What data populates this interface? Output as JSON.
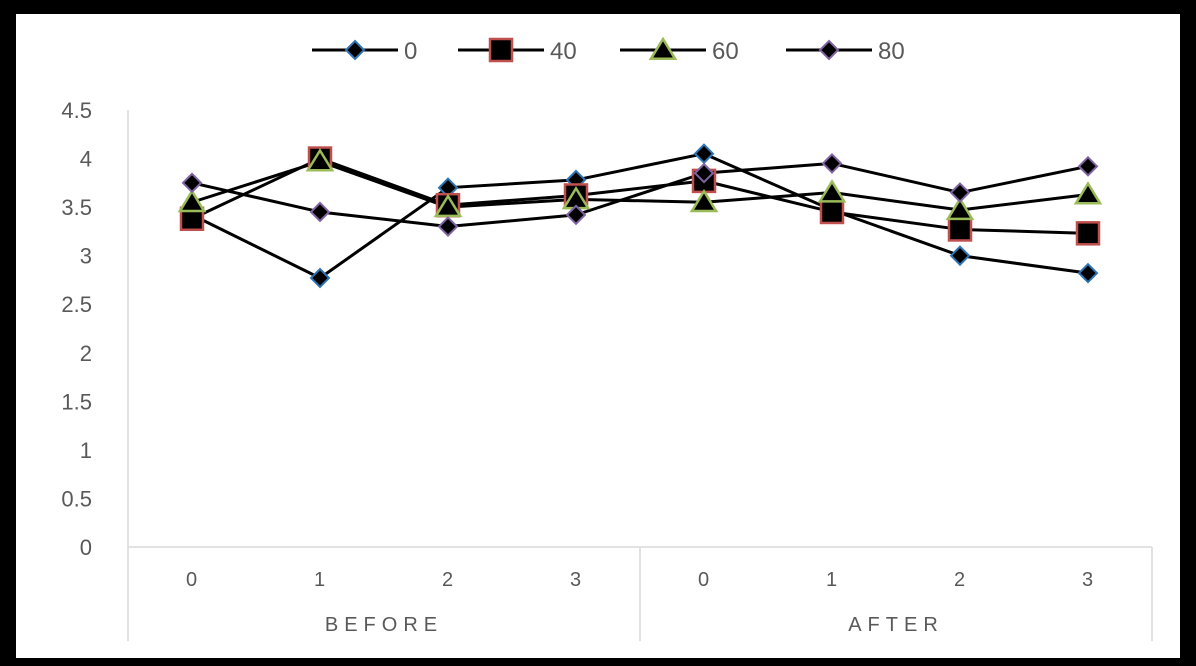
{
  "chart_data": {
    "type": "line",
    "categories": [
      "0",
      "1",
      "2",
      "3",
      "0",
      "1",
      "2",
      "3"
    ],
    "groups": [
      {
        "label": "BEFORE",
        "start": 0,
        "end": 4
      },
      {
        "label": "AFTER",
        "start": 4,
        "end": 8
      }
    ],
    "ylim": [
      0,
      4.5
    ],
    "yticks": [
      "0",
      "0.5",
      "1",
      "1.5",
      "2",
      "2.5",
      "3",
      "3.5",
      "4",
      "4.5"
    ],
    "ytick_values": [
      0,
      0.5,
      1,
      1.5,
      2,
      2.5,
      3,
      3.5,
      4,
      4.5
    ],
    "grid": false,
    "legend_position": "top",
    "series": [
      {
        "name": "0",
        "marker": "diamond",
        "line_color": "#000000",
        "marker_fill": "#000000",
        "marker_edge": "#2e75b6",
        "values": [
          3.42,
          2.77,
          3.7,
          3.78,
          4.05,
          3.47,
          3.0,
          2.82
        ]
      },
      {
        "name": "40",
        "marker": "square",
        "line_color": "#000000",
        "marker_fill": "#000000",
        "marker_edge": "#c0504d",
        "values": [
          3.38,
          4.0,
          3.52,
          3.62,
          3.77,
          3.45,
          3.27,
          3.23
        ]
      },
      {
        "name": "60",
        "marker": "triangle",
        "line_color": "#000000",
        "marker_fill": "#000000",
        "marker_edge": "#9bbb59",
        "values": [
          3.55,
          3.97,
          3.5,
          3.58,
          3.55,
          3.65,
          3.47,
          3.63
        ]
      },
      {
        "name": "80",
        "marker": "diamond",
        "line_color": "#000000",
        "marker_fill": "#000000",
        "marker_edge": "#8064a2",
        "values": [
          3.75,
          3.45,
          3.3,
          3.42,
          3.85,
          3.95,
          3.65,
          3.92
        ]
      }
    ]
  }
}
